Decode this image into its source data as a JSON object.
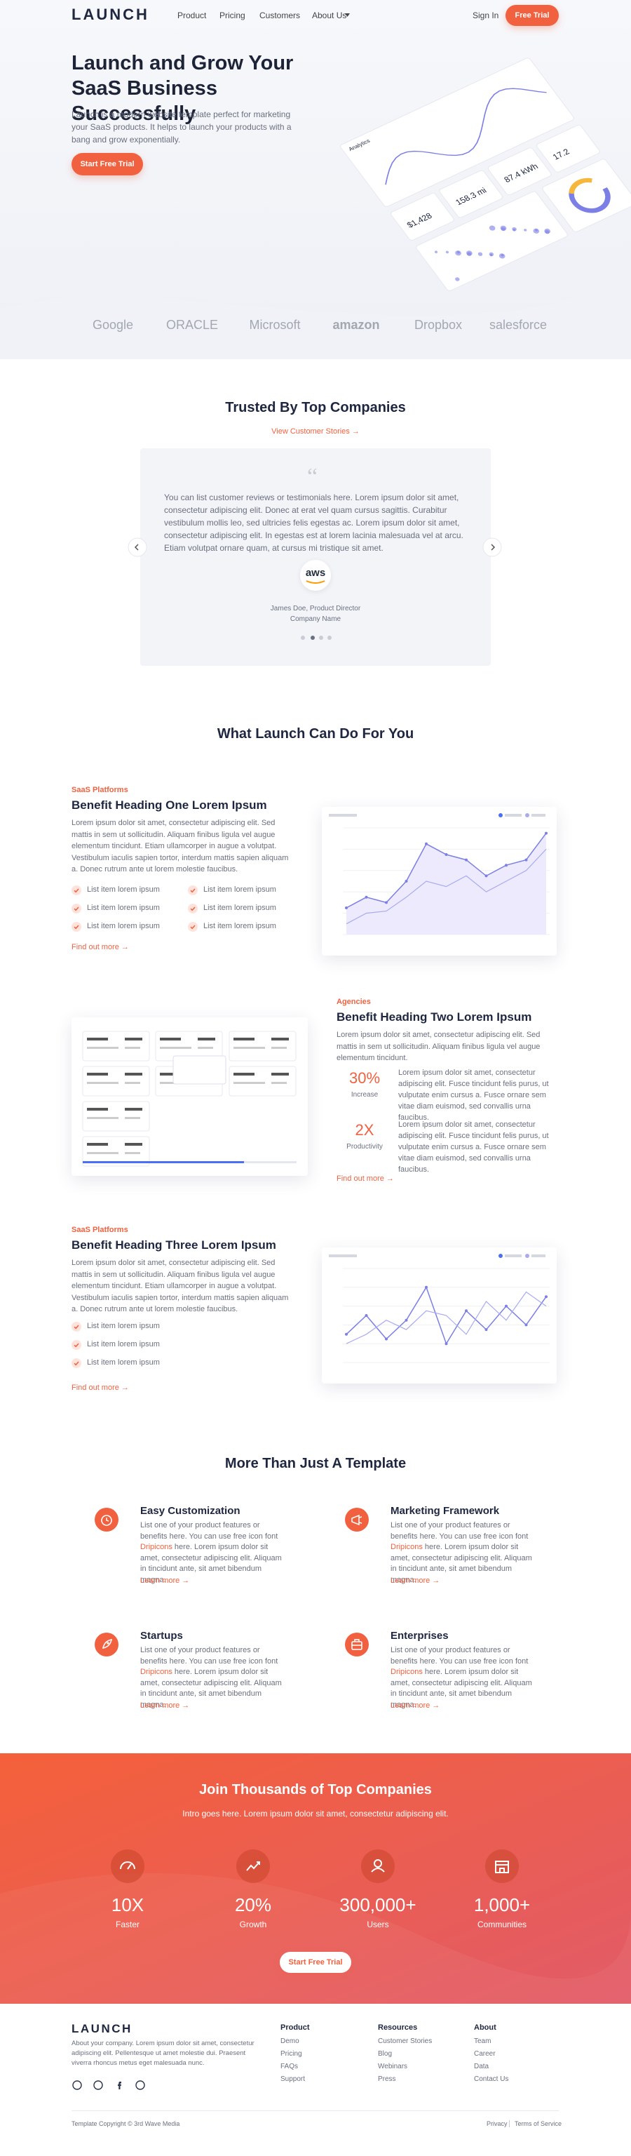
{
  "nav": {
    "logo": "LAUNCH",
    "links": [
      "Product",
      "Pricing",
      "Customers",
      "About Us"
    ],
    "sign_in": "Sign In",
    "cta": "Free Trial"
  },
  "hero": {
    "title": "Launch and Grow Your SaaS Business Successfully",
    "text": "Launch is a modern website template perfect for marketing your SaaS products. It helps to launch your products with a bang and grow exponentially.",
    "cta": "Start Free Trial",
    "dashboard": {
      "heading": "Analytics",
      "stats": [
        "$1,428",
        "158.3 mi",
        "87.4 kWh",
        "17.2"
      ]
    }
  },
  "logos": [
    "Google",
    "ORACLE",
    "Microsoft",
    "amazon",
    "Dropbox",
    "salesforce"
  ],
  "testimonials": {
    "title": "Trusted By Top Companies",
    "link": "View Customer Stories →",
    "quote": "You can list customer reviews or testimonials here. Lorem ipsum dolor sit amet, consectetur adipiscing elit. Donec at erat vel quam cursus sagittis. Curabitur vestibulum mollis leo, sed ultricies felis egestas ac. Lorem ipsum dolor sit amet, consectetur adipiscing elit. In egestas est at lorem lacinia malesuada vel at arcu. Etiam volutpat ornare quam, at cursus mi tristique sit amet.",
    "logo": "aws",
    "name": "James Doe, Product Director",
    "company": "Company Name"
  },
  "benefits": {
    "title": "What Launch Can Do For You",
    "items": [
      {
        "label": "SaaS Platforms",
        "heading": "Benefit Heading One Lorem Ipsum",
        "text": "Lorem ipsum dolor sit amet, consectetur adipiscing elit. Sed mattis in sem ut sollicitudin. Aliquam finibus ligula vel augue elementum tincidunt. Etiam ullamcorper in augue a volutpat. Vestibulum iaculis sapien tortor, interdum mattis sapien aliquam a. Donec rutrum ante ut lorem molestie faucibus.",
        "list": [
          "List item lorem ipsum",
          "List item lorem ipsum",
          "List item lorem ipsum",
          "List item lorem ipsum",
          "List item lorem ipsum",
          "List item lorem ipsum"
        ],
        "link": "Find out more →"
      },
      {
        "label": "Agencies",
        "heading": "Benefit Heading Two Lorem Ipsum",
        "text": "Lorem ipsum dolor sit amet, consectetur adipiscing elit. Sed mattis in sem ut sollicitudin. Aliquam finibus ligula vel augue elementum tincidunt.",
        "stats": [
          {
            "value": "30%",
            "label": "Increase",
            "text": "Lorem ipsum dolor sit amet, consectetur adipiscing elit. Fusce tincidunt felis purus, ut vulputate enim cursus a. Fusce ornare sem vitae diam euismod, sed convallis urna faucibus."
          },
          {
            "value": "2X",
            "label": "Productivity",
            "text": "Lorem ipsum dolor sit amet, consectetur adipiscing elit. Fusce tincidunt felis purus, ut vulputate enim cursus a. Fusce ornare sem vitae diam euismod, sed convallis urna faucibus."
          }
        ],
        "link": "Find out more →"
      },
      {
        "label": "SaaS Platforms",
        "heading": "Benefit Heading Three Lorem Ipsum",
        "text": "Lorem ipsum dolor sit amet, consectetur adipiscing elit. Sed mattis in sem ut sollicitudin. Aliquam finibus ligula vel augue elementum tincidunt. Etiam ullamcorper in augue a volutpat. Vestibulum iaculis sapien tortor, interdum mattis sapien aliquam a. Donec rutrum ante ut lorem molestie faucibus.",
        "list": [
          "List item lorem ipsum",
          "List item lorem ipsum",
          "List item lorem ipsum"
        ],
        "link": "Find out more →"
      }
    ]
  },
  "features": {
    "title": "More Than Just A Template",
    "items": [
      {
        "title": "Easy Customization",
        "before": "List one of your product features or benefits here. You can use free icon font ",
        "link": "Dripicons",
        "after": " here. Lorem ipsum dolor sit amet, consectetur adipiscing elit. Aliquam in tincidunt ante, sit amet bibendum magna.",
        "more": "Learn more →"
      },
      {
        "title": "Marketing Framework",
        "before": "List one of your product features or benefits here. You can use free icon font ",
        "link": "Dripicons",
        "after": " here. Lorem ipsum dolor sit amet, consectetur adipiscing elit. Aliquam in tincidunt ante, sit amet bibendum magna.",
        "more": "Learn more →"
      },
      {
        "title": "Startups",
        "before": "List one of your product features or benefits here. You can use free icon font ",
        "link": "Dripicons",
        "after": " here. Lorem ipsum dolor sit amet, consectetur adipiscing elit. Aliquam in tincidunt ante, sit amet bibendum magna.",
        "more": "Learn more →"
      },
      {
        "title": "Enterprises",
        "before": "List one of your product features or benefits here. You can use free icon font ",
        "link": "Dripicons",
        "after": " here. Lorem ipsum dolor sit amet, consectetur adipiscing elit. Aliquam in tincidunt ante, sit amet bibendum magna.",
        "more": "Learn more →"
      }
    ]
  },
  "stats": {
    "title": "Join Thousands of Top Companies",
    "subtitle": "Intro goes here. Lorem ipsum dolor sit amet, consectetur adipiscing elit.",
    "items": [
      {
        "value": "10X",
        "label": "Faster"
      },
      {
        "value": "20%",
        "label": "Growth"
      },
      {
        "value": "300,000+",
        "label": "Users"
      },
      {
        "value": "1,000+",
        "label": "Communities"
      }
    ],
    "cta": "Start Free Trial"
  },
  "footer": {
    "logo": "LAUNCH",
    "about": "About your company. Lorem ipsum dolor sit amet, consectetur adipiscing elit. Pellentesque ut amet molestie dui. Praesent viverra rhoncus metus eget malesuada nunc.",
    "columns": [
      {
        "heading": "Product",
        "links": [
          "Demo",
          "Pricing",
          "FAQs",
          "Support"
        ]
      },
      {
        "heading": "Resources",
        "links": [
          "Customer Stories",
          "Blog",
          "Webinars",
          "Press"
        ]
      },
      {
        "heading": "About",
        "links": [
          "Team",
          "Career",
          "Data",
          "Contact Us"
        ]
      }
    ],
    "copyright": "Template Copyright © 3rd Wave Media",
    "legal": [
      "Privacy",
      "Terms of Service"
    ]
  }
}
